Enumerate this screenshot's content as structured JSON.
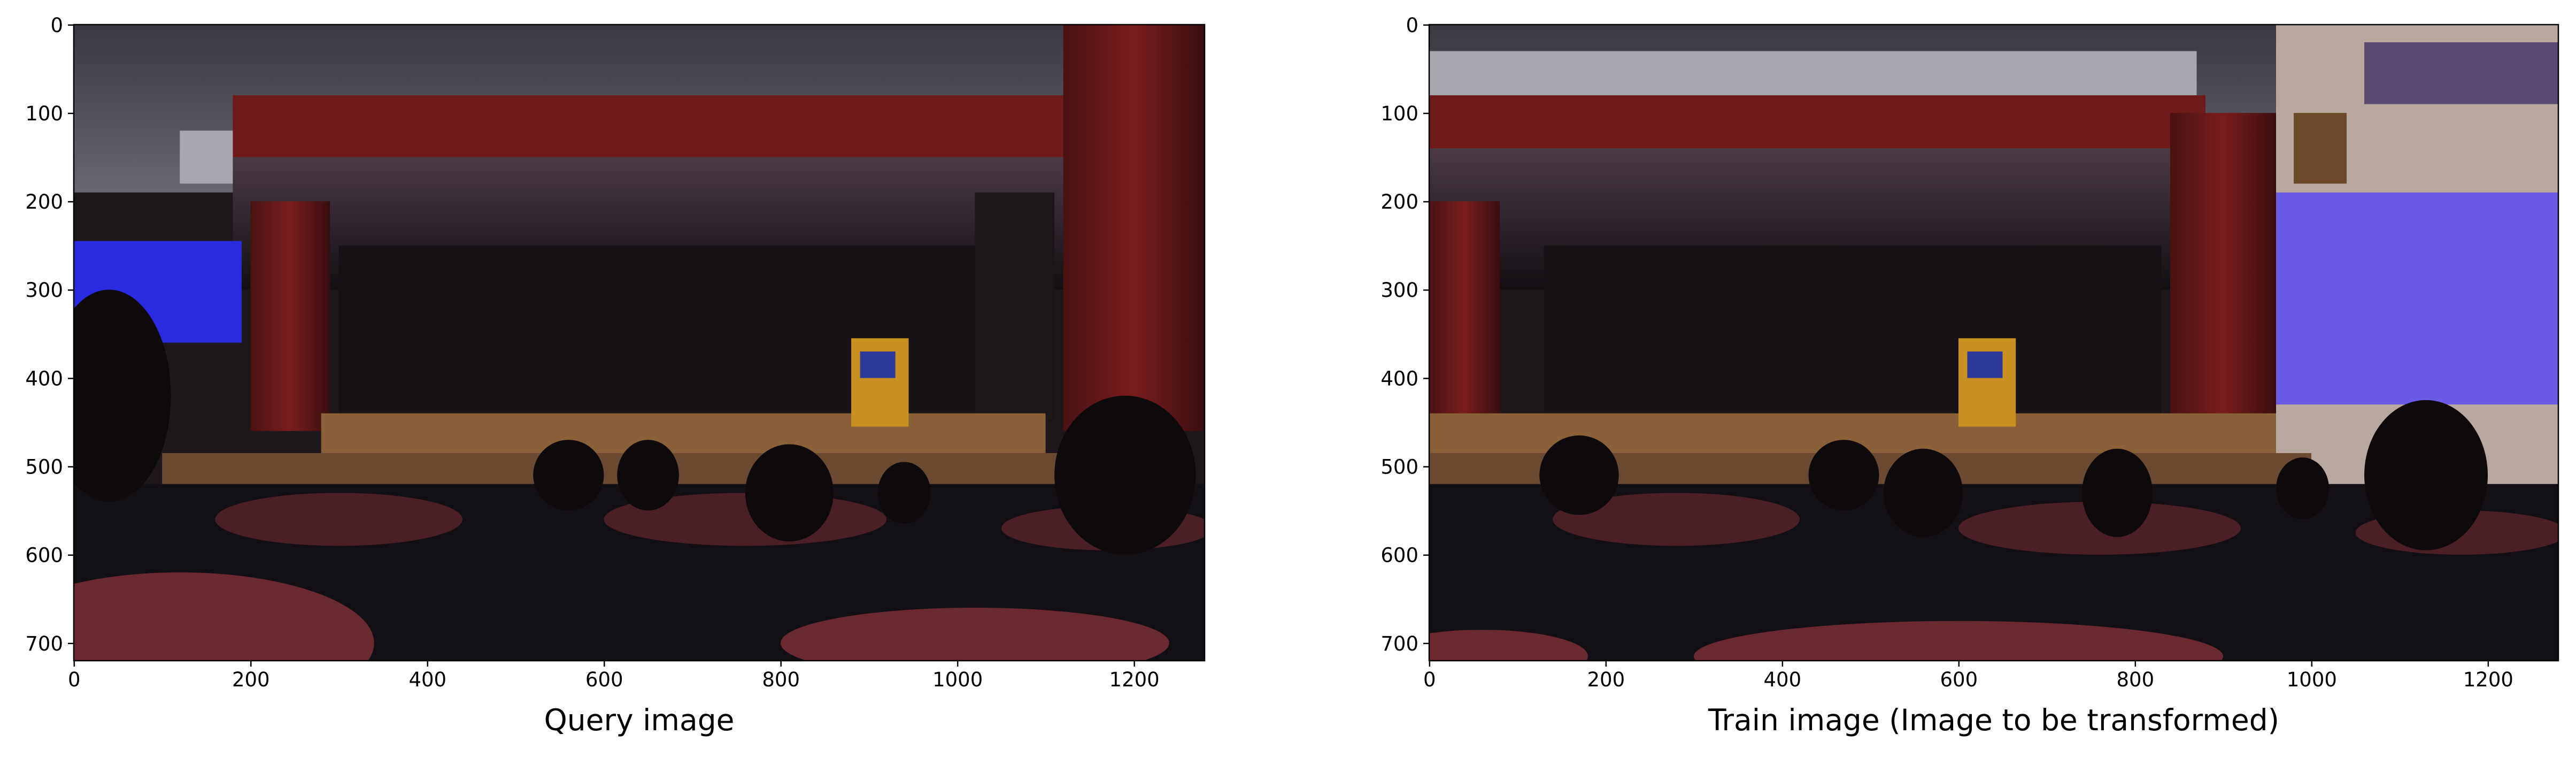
{
  "chart_data": [
    {
      "type": "image",
      "xlabel": "Query image",
      "xlim": [
        -0.5,
        1279.5
      ],
      "ylim": [
        719.5,
        -0.5
      ],
      "xticks": [
        0,
        200,
        400,
        600,
        800,
        1000,
        1200
      ],
      "yticks": [
        0,
        100,
        200,
        300,
        400,
        500,
        600,
        700
      ]
    },
    {
      "type": "image",
      "xlabel": "Train image (Image to be transformed)",
      "xlim": [
        -0.5,
        1279.5
      ],
      "ylim": [
        719.5,
        -0.5
      ],
      "xticks": [
        0,
        200,
        400,
        600,
        800,
        1000,
        1200
      ],
      "yticks": [
        0,
        100,
        200,
        300,
        400,
        500,
        600,
        700
      ]
    }
  ]
}
